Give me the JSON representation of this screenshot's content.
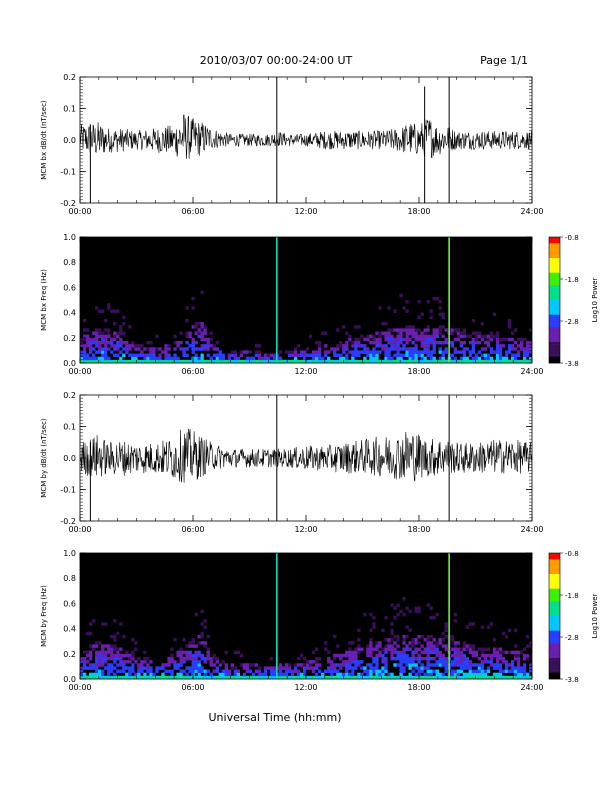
{
  "header": {
    "title": "2010/03/07  00:00-24:00 UT",
    "page": "Page 1/1"
  },
  "xlabel": "Universal Time (hh:mm)",
  "colors": {
    "trace": "#000000",
    "spectrogram_background": "#000000",
    "colormap": [
      "#000000",
      "#3a0f5a",
      "#6a1fb0",
      "#2a3dff",
      "#00c8ff",
      "#00e08a",
      "#3cf000",
      "#ffff00",
      "#ff9a00",
      "#ff0000"
    ]
  },
  "chart_data": [
    {
      "type": "line",
      "ylabel": "MCM bx dB/dt (nT/sec)",
      "xlim": [
        0,
        24
      ],
      "ylim": [
        -0.2,
        0.2
      ],
      "x_ticks": [
        "00:00",
        "06:00",
        "12:00",
        "18:00",
        "24:00"
      ],
      "y_ticks": [
        "-0.2",
        "-0.1",
        "0.0",
        "0.1",
        "0.2"
      ],
      "y_tick_values": [
        -0.2,
        -0.1,
        0.0,
        0.1,
        0.2
      ],
      "envelope": {
        "x": [
          0,
          1,
          1.5,
          2,
          3,
          4,
          5,
          5.5,
          6,
          6.5,
          7,
          8,
          9,
          10,
          10.5,
          11,
          12,
          13,
          14,
          15,
          16,
          17,
          17.5,
          18,
          18.5,
          19,
          19.5,
          20,
          21,
          22,
          23,
          24
        ],
        "upper": [
          0.05,
          0.06,
          0.04,
          0.04,
          0.03,
          0.04,
          0.05,
          0.09,
          0.07,
          0.06,
          0.04,
          0.02,
          0.02,
          0.02,
          0.03,
          0.02,
          0.02,
          0.03,
          0.03,
          0.03,
          0.03,
          0.04,
          0.06,
          0.05,
          0.08,
          0.05,
          0.05,
          0.03,
          0.03,
          0.03,
          0.03,
          0.03
        ],
        "lower": [
          -0.04,
          -0.06,
          -0.04,
          -0.04,
          -0.03,
          -0.04,
          -0.05,
          -0.07,
          -0.06,
          -0.05,
          -0.03,
          -0.02,
          -0.02,
          -0.02,
          -0.02,
          -0.02,
          -0.02,
          -0.03,
          -0.03,
          -0.03,
          -0.03,
          -0.04,
          -0.05,
          -0.05,
          -0.06,
          -0.05,
          -0.04,
          -0.03,
          -0.03,
          -0.03,
          -0.03,
          -0.03
        ]
      },
      "spikes": [
        {
          "x": 0.55,
          "min": -0.2,
          "max": 0.05
        },
        {
          "x": 10.45,
          "min": -0.2,
          "max": 0.2
        },
        {
          "x": 18.3,
          "min": -0.2,
          "max": 0.17
        },
        {
          "x": 19.6,
          "min": -0.2,
          "max": 0.2
        }
      ]
    },
    {
      "type": "heatmap",
      "ylabel": "MCM bx Freq (Hz)",
      "colorbar_label": "Log10 Power",
      "xlim": [
        0,
        24
      ],
      "ylim": [
        0.0,
        1.0
      ],
      "x_ticks": [
        "00:00",
        "06:00",
        "12:00",
        "18:00",
        "24:00"
      ],
      "y_ticks": [
        "0.0",
        "0.2",
        "0.4",
        "0.6",
        "0.8",
        "1.0"
      ],
      "y_tick_values": [
        0.0,
        0.2,
        0.4,
        0.6,
        0.8,
        1.0
      ],
      "colorbar_ticks": [
        "-0.8",
        "-1.8",
        "-2.8",
        "-3.8"
      ],
      "colorbar_tick_values": [
        -0.8,
        -1.8,
        -2.8,
        -3.8
      ],
      "colorbar_range": [
        -3.8,
        -0.8
      ],
      "activity_profile": {
        "x": [
          0,
          1,
          2,
          3,
          4,
          5,
          6,
          6.5,
          7,
          8,
          9,
          10,
          11,
          12,
          13,
          14,
          15,
          16,
          17,
          18,
          19,
          20,
          21,
          22,
          23,
          24
        ],
        "top_freq": [
          0.2,
          0.28,
          0.24,
          0.15,
          0.12,
          0.16,
          0.3,
          0.35,
          0.16,
          0.1,
          0.1,
          0.08,
          0.1,
          0.12,
          0.14,
          0.18,
          0.22,
          0.25,
          0.3,
          0.28,
          0.3,
          0.26,
          0.22,
          0.22,
          0.2,
          0.18
        ]
      },
      "vertical_lines": [
        {
          "x": 10.45,
          "color": "#00e0c0"
        },
        {
          "x": 19.6,
          "color": "#6ef03c"
        }
      ]
    },
    {
      "type": "line",
      "ylabel": "MCM by dB/dt (nT/sec)",
      "xlim": [
        0,
        24
      ],
      "ylim": [
        -0.2,
        0.2
      ],
      "x_ticks": [
        "00:00",
        "06:00",
        "12:00",
        "18:00",
        "24:00"
      ],
      "y_ticks": [
        "-0.2",
        "-0.1",
        "0.0",
        "0.1",
        "0.2"
      ],
      "y_tick_values": [
        -0.2,
        -0.1,
        0.0,
        0.1,
        0.2
      ],
      "envelope": {
        "x": [
          0,
          1,
          1.5,
          2,
          3,
          4,
          5,
          5.5,
          6,
          6.5,
          7,
          8,
          9,
          10,
          10.5,
          11,
          12,
          13,
          14,
          15,
          16,
          17,
          17.5,
          18,
          18.5,
          19,
          19.5,
          20,
          21,
          22,
          23,
          24
        ],
        "upper": [
          0.05,
          0.08,
          0.05,
          0.06,
          0.05,
          0.05,
          0.07,
          0.1,
          0.09,
          0.07,
          0.05,
          0.03,
          0.03,
          0.03,
          0.03,
          0.03,
          0.04,
          0.04,
          0.05,
          0.06,
          0.07,
          0.08,
          0.1,
          0.08,
          0.06,
          0.07,
          0.06,
          0.05,
          0.05,
          0.06,
          0.06,
          0.05
        ],
        "lower": [
          -0.05,
          -0.07,
          -0.05,
          -0.06,
          -0.05,
          -0.05,
          -0.07,
          -0.08,
          -0.08,
          -0.06,
          -0.04,
          -0.03,
          -0.03,
          -0.03,
          -0.03,
          -0.03,
          -0.04,
          -0.04,
          -0.05,
          -0.05,
          -0.06,
          -0.07,
          -0.08,
          -0.07,
          -0.06,
          -0.06,
          -0.05,
          -0.05,
          -0.05,
          -0.05,
          -0.05,
          -0.05
        ]
      },
      "spikes": [
        {
          "x": 0.55,
          "min": -0.2,
          "max": 0.05
        },
        {
          "x": 10.45,
          "min": -0.2,
          "max": 0.2
        },
        {
          "x": 19.6,
          "min": -0.2,
          "max": 0.2
        }
      ]
    },
    {
      "type": "heatmap",
      "ylabel": "MCM by Freq (Hz)",
      "colorbar_label": "Log10 Power",
      "xlim": [
        0,
        24
      ],
      "ylim": [
        0.0,
        1.0
      ],
      "x_ticks": [
        "00:00",
        "06:00",
        "12:00",
        "18:00",
        "24:00"
      ],
      "y_ticks": [
        "0.0",
        "0.2",
        "0.4",
        "0.6",
        "0.8",
        "1.0"
      ],
      "y_tick_values": [
        0.0,
        0.2,
        0.4,
        0.6,
        0.8,
        1.0
      ],
      "colorbar_ticks": [
        "-0.8",
        "-1.8",
        "-2.8",
        "-3.8"
      ],
      "colorbar_tick_values": [
        -0.8,
        -1.8,
        -2.8,
        -3.8
      ],
      "colorbar_range": [
        -3.8,
        -0.8
      ],
      "activity_profile": {
        "x": [
          0,
          1,
          2,
          3,
          4,
          5,
          6,
          6.5,
          7,
          8,
          9,
          10,
          11,
          12,
          13,
          14,
          15,
          16,
          17,
          18,
          19,
          20,
          21,
          22,
          23,
          24
        ],
        "top_freq": [
          0.22,
          0.3,
          0.26,
          0.18,
          0.14,
          0.2,
          0.32,
          0.35,
          0.18,
          0.12,
          0.12,
          0.1,
          0.12,
          0.14,
          0.16,
          0.22,
          0.28,
          0.32,
          0.36,
          0.34,
          0.34,
          0.3,
          0.26,
          0.25,
          0.22,
          0.2
        ]
      },
      "vertical_lines": [
        {
          "x": 10.45,
          "color": "#00e0c0"
        },
        {
          "x": 19.6,
          "color": "#6ef03c"
        }
      ]
    }
  ]
}
